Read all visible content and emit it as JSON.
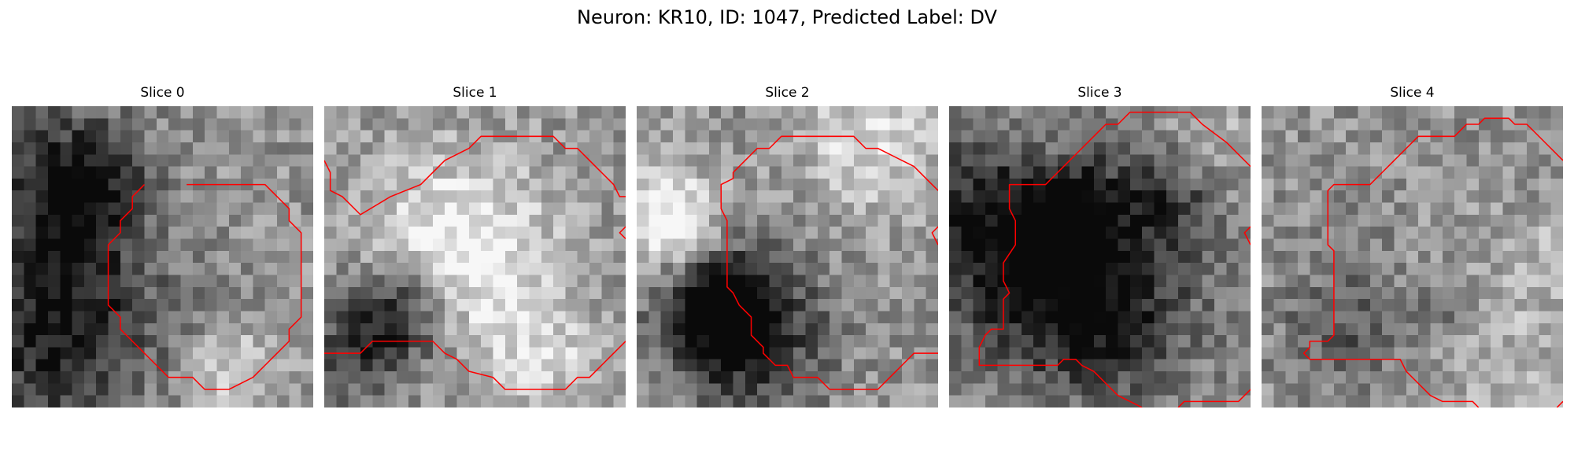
{
  "figure": {
    "title": "Neuron: KR10, ID: 1047, Predicted Label: DV"
  },
  "style": {
    "contour_color": "#ff0000"
  },
  "slices": [
    {
      "title": "Slice 0",
      "seed": 11,
      "contours": [
        [
          [
            14.5,
            6.5
          ],
          [
            21,
            6.5
          ],
          [
            23,
            8.5
          ],
          [
            23,
            9.5
          ],
          [
            24,
            10.5
          ],
          [
            24,
            17.5
          ],
          [
            23,
            18.5
          ],
          [
            23,
            19.5
          ],
          [
            22,
            20.5
          ],
          [
            21,
            21.5
          ],
          [
            20,
            22.5
          ],
          [
            18,
            23.5
          ],
          [
            16,
            23.5
          ],
          [
            15,
            22.5
          ],
          [
            13,
            22.5
          ],
          [
            12,
            21.5
          ],
          [
            11,
            20.5
          ],
          [
            10,
            19.5
          ],
          [
            9,
            18.5
          ],
          [
            9,
            17.5
          ],
          [
            8,
            16.5
          ],
          [
            8,
            11.5
          ],
          [
            9,
            10.5
          ],
          [
            9,
            9.5
          ],
          [
            10,
            8.5
          ],
          [
            10,
            7.5
          ],
          [
            11,
            6.5
          ]
        ]
      ]
    },
    {
      "title": "Slice 1",
      "seed": 23,
      "contours": [
        [
          [
            0,
            4.5
          ],
          [
            0.5,
            5.5
          ],
          [
            0.5,
            7
          ],
          [
            1.5,
            7.5
          ],
          [
            3,
            9
          ],
          [
            5.5,
            7.5
          ],
          [
            8,
            6.5
          ],
          [
            10,
            4.5
          ],
          [
            12,
            3.5
          ],
          [
            13,
            2.5
          ],
          [
            19,
            2.5
          ],
          [
            20,
            3.5
          ],
          [
            21,
            3.5
          ],
          [
            22,
            4.5
          ],
          [
            23,
            5.5
          ],
          [
            24,
            6.5
          ],
          [
            24.5,
            7.5
          ],
          [
            25,
            7.5
          ]
        ],
        [
          [
            25,
            10
          ],
          [
            24.5,
            10.5
          ],
          [
            25,
            11
          ]
        ],
        [
          [
            0,
            20.5
          ],
          [
            3,
            20.5
          ],
          [
            4,
            19.5
          ],
          [
            9,
            19.5
          ],
          [
            10,
            20.5
          ],
          [
            11,
            21
          ],
          [
            12,
            22
          ],
          [
            14,
            22.5
          ],
          [
            15,
            23.5
          ],
          [
            20,
            23.5
          ],
          [
            21,
            22.5
          ],
          [
            22,
            22.5
          ],
          [
            23,
            21.5
          ],
          [
            24,
            20.5
          ],
          [
            25,
            19.5
          ]
        ]
      ]
    },
    {
      "title": "Slice 2",
      "seed": 37,
      "contours": [
        [
          [
            25,
            7
          ],
          [
            24,
            6
          ],
          [
            23,
            5
          ],
          [
            22,
            4.5
          ],
          [
            20,
            3.5
          ],
          [
            19,
            3.5
          ],
          [
            18,
            2.5
          ],
          [
            12,
            2.5
          ],
          [
            11,
            3.5
          ],
          [
            10,
            3.5
          ],
          [
            9,
            4.5
          ],
          [
            8,
            5.5
          ],
          [
            8,
            6
          ],
          [
            7,
            6.5
          ],
          [
            7,
            8.5
          ],
          [
            7.5,
            9.5
          ],
          [
            7.5,
            15
          ],
          [
            8,
            15.5
          ],
          [
            8.5,
            16.5
          ],
          [
            9.5,
            17.5
          ],
          [
            9.5,
            19
          ],
          [
            10.5,
            20
          ],
          [
            10.5,
            20.5
          ],
          [
            11.5,
            21.5
          ],
          [
            12.5,
            21.5
          ],
          [
            13,
            22.5
          ],
          [
            15,
            22.5
          ],
          [
            16,
            23.5
          ],
          [
            20,
            23.5
          ],
          [
            21,
            22.5
          ],
          [
            22,
            21.5
          ],
          [
            23,
            20.5
          ],
          [
            25,
            20.5
          ]
        ],
        [
          [
            25,
            10
          ],
          [
            24.5,
            10.5
          ],
          [
            25,
            11.5
          ]
        ]
      ]
    },
    {
      "title": "Slice 3",
      "seed": 53,
      "contours": [
        [
          [
            25,
            5
          ],
          [
            24,
            4
          ],
          [
            23,
            3
          ],
          [
            21,
            1.5
          ],
          [
            20,
            0.5
          ],
          [
            15,
            0.5
          ],
          [
            14,
            1.5
          ],
          [
            13,
            1.5
          ],
          [
            12,
            2.5
          ],
          [
            11,
            3.5
          ],
          [
            10,
            4.5
          ],
          [
            9,
            5.5
          ],
          [
            8,
            6.5
          ],
          [
            5,
            6.5
          ],
          [
            5,
            8.5
          ],
          [
            5.5,
            9.5
          ],
          [
            5.5,
            11.5
          ],
          [
            4.5,
            13
          ],
          [
            4.5,
            14.5
          ],
          [
            5,
            15.5
          ],
          [
            4.5,
            16
          ],
          [
            4.5,
            18.5
          ],
          [
            3.5,
            18.5
          ],
          [
            3,
            19
          ],
          [
            2.5,
            20
          ],
          [
            2.5,
            21.5
          ],
          [
            9,
            21.5
          ],
          [
            9.5,
            21
          ],
          [
            10.5,
            21
          ],
          [
            11,
            21.5
          ],
          [
            12,
            22
          ],
          [
            13,
            23
          ],
          [
            14,
            24
          ],
          [
            15,
            24.5
          ],
          [
            16,
            25
          ]
        ],
        [
          [
            19,
            25
          ],
          [
            19.5,
            24.5
          ],
          [
            24,
            24.5
          ],
          [
            25,
            23.5
          ]
        ],
        [
          [
            25,
            10
          ],
          [
            24.5,
            10.5
          ],
          [
            25,
            11.5
          ]
        ]
      ]
    },
    {
      "title": "Slice 4",
      "seed": 71,
      "contours": [
        [
          [
            25,
            4.5
          ],
          [
            24,
            3.5
          ],
          [
            22,
            1.5
          ],
          [
            21,
            1.5
          ],
          [
            20.5,
            1
          ],
          [
            18.5,
            1
          ],
          [
            18,
            1.5
          ],
          [
            17,
            1.5
          ],
          [
            16,
            2.5
          ],
          [
            13,
            2.5
          ],
          [
            12,
            3.5
          ],
          [
            11,
            4.5
          ],
          [
            10,
            5.5
          ],
          [
            9,
            6.5
          ],
          [
            6,
            6.5
          ],
          [
            5.5,
            7
          ],
          [
            5.5,
            11.5
          ],
          [
            6,
            12
          ],
          [
            6,
            19
          ],
          [
            5.5,
            19.5
          ],
          [
            4,
            19.5
          ],
          [
            4,
            20
          ],
          [
            3.5,
            20.5
          ],
          [
            4,
            21
          ],
          [
            10,
            21
          ],
          [
            11.5,
            21
          ],
          [
            12,
            22
          ],
          [
            13,
            23
          ],
          [
            14,
            24
          ],
          [
            15,
            24.5
          ],
          [
            17.5,
            24.5
          ],
          [
            18,
            25
          ]
        ],
        [
          [
            24.5,
            25
          ],
          [
            25,
            24.5
          ]
        ]
      ]
    }
  ]
}
